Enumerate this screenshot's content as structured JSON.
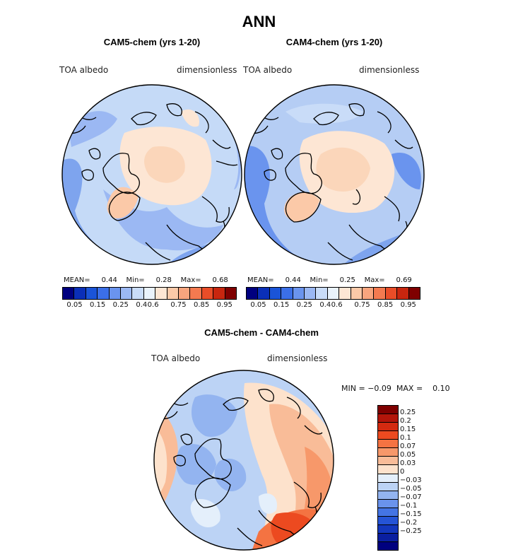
{
  "figure": {
    "title": "ANN"
  },
  "panels": [
    {
      "id": "cam5",
      "subtitle": "CAM5-chem (yrs 1-20)",
      "variable": "TOA albedo",
      "units": "dimensionless",
      "stats": {
        "mean_label": "MEAN=",
        "mean": "0.44",
        "min_label": "Min=",
        "min": "0.28",
        "max_label": "Max=",
        "max": "0.68"
      }
    },
    {
      "id": "cam4",
      "subtitle": "CAM4-chem (yrs 1-20)",
      "variable": "TOA albedo",
      "units": "dimensionless",
      "stats": {
        "mean_label": "MEAN=",
        "mean": "0.44",
        "min_label": "Min=",
        "min": "0.25",
        "max_label": "Max=",
        "max": "0.69"
      }
    }
  ],
  "horizontal_colorbar": {
    "colors": [
      "#00007f",
      "#0a2fb8",
      "#1a54d8",
      "#3b6fe8",
      "#6a94ee",
      "#9bb8f3",
      "#c9dcf8",
      "#eaf3fc",
      "#fde6d4",
      "#fbc9a8",
      "#f8a57e",
      "#f47a50",
      "#ea4d28",
      "#c8260f",
      "#7f0000"
    ],
    "tick_labels": [
      "0.05",
      "0.15",
      "0.25",
      "0.4",
      "0.6",
      "0.75",
      "0.85",
      "0.95"
    ]
  },
  "difference": {
    "subtitle": "CAM5-chem - CAM4-chem",
    "variable": "TOA albedo",
    "units": "dimensionless",
    "min_label": "MIN =",
    "min": "−0.09",
    "max_label": "MAX =",
    "max": "0.10"
  },
  "vertical_colorbar": {
    "colors": [
      "#7f0000",
      "#b3150a",
      "#d42a10",
      "#ec4a20",
      "#f47342",
      "#f7986a",
      "#f9bc98",
      "#fde2cc",
      "#e4effb",
      "#bcd3f5",
      "#93b4f0",
      "#6a93ec",
      "#4474e4",
      "#2554d6",
      "#1337bd",
      "#0a1fa0",
      "#00007f"
    ],
    "tick_labels": [
      "0.25",
      "0.2",
      "0.15",
      "0.1",
      "0.07",
      "0.05",
      "0.03",
      "0",
      "−0.03",
      "−0.05",
      "−0.07",
      "−0.1",
      "−0.15",
      "−0.2",
      "−0.25"
    ]
  }
}
